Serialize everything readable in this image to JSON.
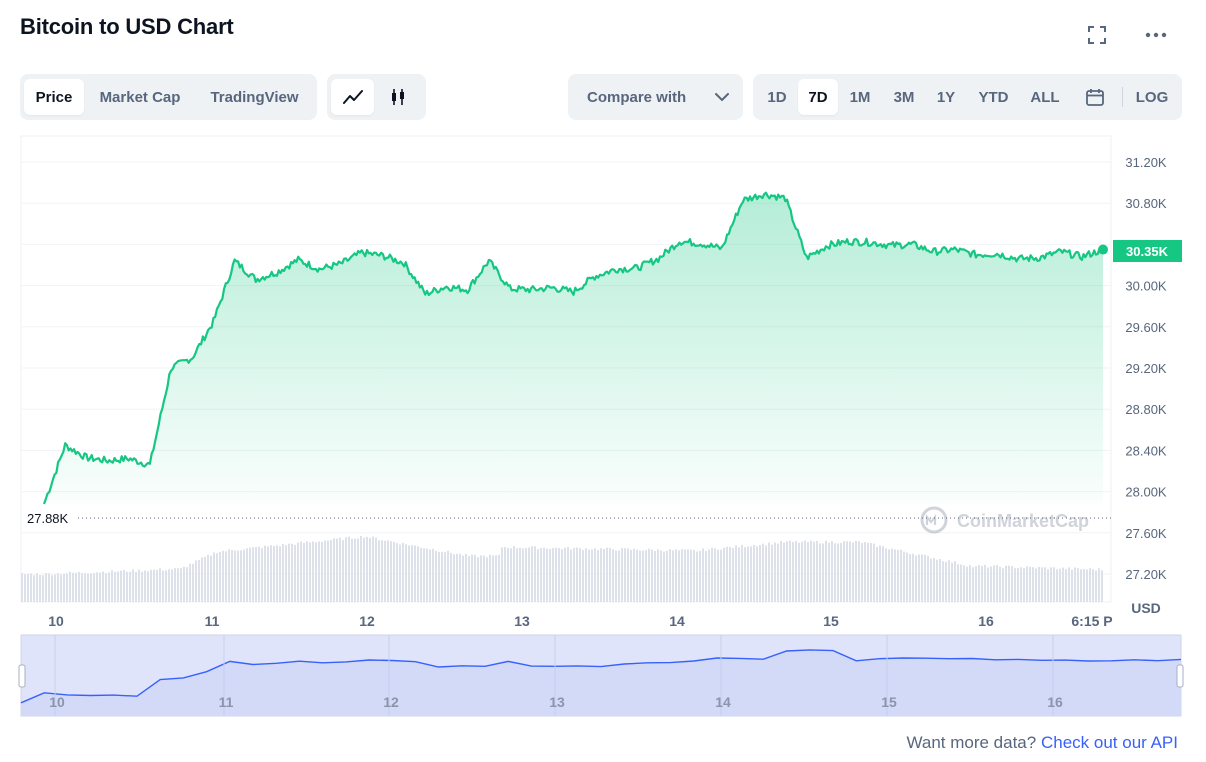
{
  "header": {
    "title": "Bitcoin to USD Chart"
  },
  "icons": {
    "fullscreen": "fullscreen-icon",
    "more": "more-dots-icon",
    "line": "line-chart-icon",
    "candle": "candlestick-icon",
    "chevron": "chevron-down-icon",
    "calendar": "calendar-icon",
    "logo": "coinmarketcap-logo-icon"
  },
  "tabs": [
    {
      "label": "Price",
      "active": true
    },
    {
      "label": "Market Cap"
    },
    {
      "label": "TradingView"
    }
  ],
  "compare": {
    "label": "Compare with"
  },
  "ranges": [
    {
      "label": "1D"
    },
    {
      "label": "7D",
      "active": true
    },
    {
      "label": "1M"
    },
    {
      "label": "3M"
    },
    {
      "label": "1Y"
    },
    {
      "label": "YTD"
    },
    {
      "label": "ALL"
    }
  ],
  "log_label": "LOG",
  "watermark": "CoinMarketCap",
  "colors": {
    "up": "#16c784",
    "accent": "#3861fb",
    "volume": "#cfd6e4",
    "navigator_fill": "#dfe4fb"
  },
  "chart_data": {
    "type": "area",
    "x_tick_labels": [
      "10",
      "11",
      "12",
      "13",
      "14",
      "15",
      "16",
      "6:15 P"
    ],
    "y_tick_labels": [
      "31.20K",
      "30.80K",
      "30.40K",
      "30.00K",
      "29.60K",
      "29.20K",
      "28.80K",
      "28.40K",
      "28.00K",
      "27.60K",
      "27.20K"
    ],
    "y_ticks": [
      31200,
      30800,
      30400,
      30000,
      29600,
      29200,
      28800,
      28400,
      28000,
      27600,
      27200
    ],
    "ylim": [
      27200,
      31400
    ],
    "ylabel": "USD",
    "current_value_label": "30.35K",
    "low_value_label": "27.88K",
    "series": [
      {
        "x": [
          0.0,
          0.02,
          0.04,
          0.06,
          0.08,
          0.1,
          0.12,
          0.14,
          0.16,
          0.18,
          0.2,
          0.22,
          0.24,
          0.26,
          0.28,
          0.3,
          0.32,
          0.34,
          0.36,
          0.38,
          0.4,
          0.42,
          0.44,
          0.46,
          0.48,
          0.5,
          0.52,
          0.54,
          0.56,
          0.58,
          0.6,
          0.62,
          0.64,
          0.66,
          0.68,
          0.7,
          0.72,
          0.74,
          0.76,
          0.78,
          0.8,
          0.82,
          0.84,
          0.86,
          0.88,
          0.9,
          0.92,
          0.94,
          0.96,
          0.98,
          1.0
        ],
        "values": [
          27880,
          28450,
          28330,
          28300,
          28320,
          28260,
          29200,
          29300,
          29650,
          30240,
          30060,
          30130,
          30250,
          30160,
          30210,
          30320,
          30290,
          30220,
          29920,
          29990,
          29960,
          30240,
          29970,
          29960,
          29980,
          29940,
          30090,
          30160,
          30170,
          30260,
          30430,
          30410,
          30360,
          30830,
          30890,
          30850,
          30270,
          30390,
          30430,
          30420,
          30390,
          30400,
          30330,
          30350,
          30300,
          30310,
          30260,
          30270,
          30330,
          30280,
          30350
        ]
      }
    ],
    "navigator": {
      "x_tick_labels": [
        "10",
        "11",
        "12",
        "13",
        "14",
        "15",
        "16"
      ]
    }
  },
  "footer": {
    "prefix": "Want more data?",
    "link": "Check out our API"
  }
}
